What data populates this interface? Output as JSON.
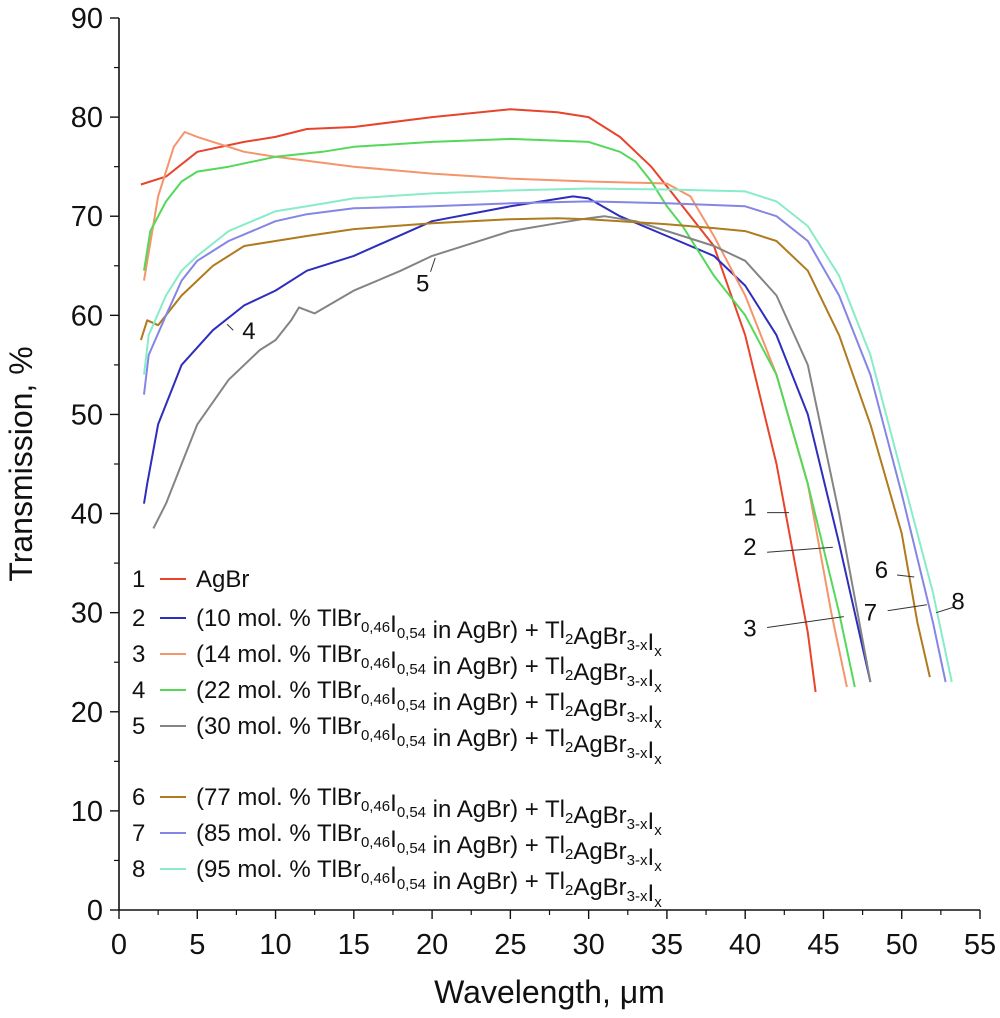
{
  "chart_data": {
    "type": "line",
    "xlabel": "Wavelength, μm",
    "ylabel": "Transmission, %",
    "xlim": [
      0,
      55
    ],
    "ylim": [
      0,
      90
    ],
    "xticks": [
      0,
      5,
      10,
      15,
      20,
      25,
      30,
      35,
      40,
      45,
      50,
      55
    ],
    "yticks": [
      0,
      10,
      20,
      30,
      40,
      50,
      60,
      70,
      80,
      90
    ],
    "grid": false,
    "legend_position": "bottom-left",
    "series": [
      {
        "num": "1",
        "color": "#e8432b",
        "legend_parts": [
          {
            "t": "AgBr",
            "sub": false
          }
        ],
        "x": [
          1.4,
          3,
          5,
          8,
          10,
          12,
          15,
          20,
          25,
          28,
          30,
          32,
          34,
          36,
          38,
          40,
          42,
          44,
          44.5
        ],
        "y": [
          73.2,
          74,
          76.5,
          77.5,
          78,
          78.8,
          79,
          80,
          80.8,
          80.5,
          80,
          78,
          75,
          71,
          67,
          58,
          45,
          28,
          22
        ]
      },
      {
        "num": "2",
        "color": "#2e2dbd",
        "legend_parts": [
          {
            "t": "(10 mol. % TlBr",
            "sub": false
          },
          {
            "t": "0,46",
            "sub": true
          },
          {
            "t": "I",
            "sub": false
          },
          {
            "t": "0,54",
            "sub": true
          },
          {
            "t": " in AgBr) + Tl",
            "sub": false
          },
          {
            "t": "2",
            "sub": true
          },
          {
            "t": "AgBr",
            "sub": false
          },
          {
            "t": "3-x",
            "sub": true
          },
          {
            "t": "I",
            "sub": false
          },
          {
            "t": "x",
            "sub": true
          }
        ],
        "x": [
          1.6,
          1.8,
          2.5,
          4,
          6,
          8,
          10,
          12,
          15,
          20,
          25,
          29,
          30,
          32,
          35,
          38,
          40,
          42,
          44,
          46,
          48
        ],
        "y": [
          41,
          43,
          49,
          55,
          58.5,
          61,
          62.5,
          64.5,
          66,
          69.5,
          71,
          72,
          71.8,
          70,
          68,
          66,
          63,
          58,
          50,
          37,
          23
        ]
      },
      {
        "num": "3",
        "color": "#f4956b",
        "legend_parts": [
          {
            "t": "(14 mol. % TlBr",
            "sub": false
          },
          {
            "t": "0,46",
            "sub": true
          },
          {
            "t": "I",
            "sub": false
          },
          {
            "t": "0,54",
            "sub": true
          },
          {
            "t": " in AgBr) + Tl",
            "sub": false
          },
          {
            "t": "2",
            "sub": true
          },
          {
            "t": "AgBr",
            "sub": false
          },
          {
            "t": "3-x",
            "sub": true
          },
          {
            "t": "I",
            "sub": false
          },
          {
            "t": "x",
            "sub": true
          }
        ],
        "x": [
          1.6,
          2.5,
          3.5,
          4.2,
          5,
          6,
          8,
          10,
          15,
          20,
          25,
          30,
          35,
          36.5,
          38,
          40,
          42,
          44,
          45.5,
          46.5
        ],
        "y": [
          63.5,
          72,
          77,
          78.5,
          78,
          77.5,
          76.5,
          76,
          75,
          74.3,
          73.8,
          73.5,
          73.3,
          72,
          68,
          62,
          54,
          43,
          30,
          22.5
        ]
      },
      {
        "num": "4",
        "color": "#55d85a",
        "legend_parts": [
          {
            "t": "(22 mol. % TlBr",
            "sub": false
          },
          {
            "t": "0,46",
            "sub": true
          },
          {
            "t": "I",
            "sub": false
          },
          {
            "t": "0,54",
            "sub": true
          },
          {
            "t": " in AgBr) + Tl",
            "sub": false
          },
          {
            "t": "2",
            "sub": true
          },
          {
            "t": "AgBr",
            "sub": false
          },
          {
            "t": "3-x",
            "sub": true
          },
          {
            "t": "I",
            "sub": false
          },
          {
            "t": "x",
            "sub": true
          }
        ],
        "x": [
          1.6,
          2,
          3,
          4,
          5,
          7,
          10,
          13,
          15,
          20,
          25,
          30,
          32,
          33,
          34,
          35,
          36,
          38,
          40,
          42,
          44,
          46,
          47
        ],
        "y": [
          64.5,
          68.5,
          71.5,
          73.5,
          74.5,
          75,
          76,
          76.5,
          77,
          77.5,
          77.8,
          77.5,
          76.5,
          75.5,
          73.5,
          71,
          69,
          64,
          60,
          54,
          43,
          30,
          22.5
        ]
      },
      {
        "num": "5",
        "color": "#848484",
        "legend_parts": [
          {
            "t": "(30 mol. % TlBr",
            "sub": false
          },
          {
            "t": "0,46",
            "sub": true
          },
          {
            "t": "I",
            "sub": false
          },
          {
            "t": "0,54",
            "sub": true
          },
          {
            "t": " in AgBr) + Tl",
            "sub": false
          },
          {
            "t": "2",
            "sub": true
          },
          {
            "t": "AgBr",
            "sub": false
          },
          {
            "t": "3-x",
            "sub": true
          },
          {
            "t": "I",
            "sub": false
          },
          {
            "t": "x",
            "sub": true
          }
        ],
        "x": [
          2.2,
          3,
          4,
          5,
          7,
          9,
          10,
          11,
          11.5,
          12.5,
          15,
          18,
          20,
          25,
          28,
          30,
          31,
          33,
          36,
          38,
          40,
          42,
          44,
          46,
          48
        ],
        "y": [
          38.5,
          41,
          45,
          49,
          53.5,
          56.5,
          57.5,
          59.5,
          60.8,
          60.2,
          62.5,
          64.5,
          66,
          68.5,
          69.3,
          69.8,
          70,
          69.5,
          68,
          67,
          65.5,
          62,
          55,
          40,
          23
        ]
      },
      {
        "num": "6",
        "color": "#b07a1e",
        "legend_parts": [
          {
            "t": "(77 mol. % TlBr",
            "sub": false
          },
          {
            "t": "0,46",
            "sub": true
          },
          {
            "t": "I",
            "sub": false
          },
          {
            "t": "0,54",
            "sub": true
          },
          {
            "t": " in AgBr) + Tl",
            "sub": false
          },
          {
            "t": "2",
            "sub": true
          },
          {
            "t": "AgBr",
            "sub": false
          },
          {
            "t": "3-x",
            "sub": true
          },
          {
            "t": "I",
            "sub": false
          },
          {
            "t": "x",
            "sub": true
          }
        ],
        "x": [
          1.4,
          1.8,
          2.5,
          4,
          5,
          6,
          7,
          8,
          10,
          12,
          15,
          20,
          25,
          28,
          30,
          35,
          38,
          40,
          42,
          44,
          46,
          48,
          50,
          51,
          51.8
        ],
        "y": [
          57.5,
          59.5,
          59,
          62,
          63.5,
          65,
          66,
          67,
          67.5,
          68,
          68.7,
          69.3,
          69.7,
          69.8,
          69.7,
          69.2,
          68.8,
          68.5,
          67.5,
          64.5,
          58,
          49,
          38,
          29,
          23.5
        ]
      },
      {
        "num": "7",
        "color": "#8585e6",
        "legend_parts": [
          {
            "t": "(85 mol. % TlBr",
            "sub": false
          },
          {
            "t": "0,46",
            "sub": true
          },
          {
            "t": "I",
            "sub": false
          },
          {
            "t": "0,54",
            "sub": true
          },
          {
            "t": " in AgBr) + Tl",
            "sub": false
          },
          {
            "t": "2",
            "sub": true
          },
          {
            "t": "AgBr",
            "sub": false
          },
          {
            "t": "3-x",
            "sub": true
          },
          {
            "t": "I",
            "sub": false
          },
          {
            "t": "x",
            "sub": true
          }
        ],
        "x": [
          1.6,
          1.9,
          3,
          4,
          5,
          7,
          10,
          12,
          15,
          20,
          25,
          30,
          35,
          40,
          42,
          44,
          46,
          48,
          50,
          52,
          52.8
        ],
        "y": [
          52,
          56,
          60,
          63.5,
          65.5,
          67.5,
          69.5,
          70.2,
          70.8,
          71,
          71.3,
          71.5,
          71.3,
          71,
          70,
          67.5,
          62,
          54,
          42,
          29,
          23
        ]
      },
      {
        "num": "8",
        "color": "#88ecc8",
        "legend_parts": [
          {
            "t": "(95 mol. % TlBr",
            "sub": false
          },
          {
            "t": "0,46",
            "sub": true
          },
          {
            "t": "I",
            "sub": false
          },
          {
            "t": "0,54",
            "sub": true
          },
          {
            "t": " in AgBr) + Tl",
            "sub": false
          },
          {
            "t": "2",
            "sub": true
          },
          {
            "t": "AgBr",
            "sub": false
          },
          {
            "t": "3-x",
            "sub": true
          },
          {
            "t": "I",
            "sub": false
          },
          {
            "t": "x",
            "sub": true
          }
        ],
        "x": [
          1.6,
          1.9,
          3,
          4,
          5,
          7,
          10,
          12,
          15,
          20,
          25,
          30,
          35,
          40,
          42,
          44,
          46,
          48,
          50,
          52,
          53.2
        ],
        "y": [
          54,
          58,
          62,
          64.5,
          66,
          68.5,
          70.5,
          71,
          71.8,
          72.3,
          72.6,
          72.8,
          72.7,
          72.5,
          71.5,
          69,
          64,
          56,
          44,
          32,
          23
        ]
      }
    ],
    "annotations": [
      {
        "text": "1",
        "x": 40.3,
        "y": 39.8,
        "lx1": 41.4,
        "ly1": 40.1,
        "lx2": 42.8,
        "ly2": 40.1
      },
      {
        "text": "2",
        "x": 40.3,
        "y": 35.8,
        "lx1": 41.4,
        "ly1": 36.1,
        "lx2": 45.6,
        "ly2": 36.6
      },
      {
        "text": "3",
        "x": 40.3,
        "y": 27.6,
        "lx1": 41.4,
        "ly1": 28.5,
        "lx2": 46.3,
        "ly2": 29.6
      },
      {
        "text": "4",
        "x": 8.3,
        "y": 57.6,
        "lx1": 7.3,
        "ly1": 58.5,
        "lx2": 6.9,
        "ly2": 59.1
      },
      {
        "text": "5",
        "x": 19.4,
        "y": 62.4,
        "lx1": 19.9,
        "ly1": 64.4,
        "lx2": 20.2,
        "ly2": 65.8
      },
      {
        "text": "6",
        "x": 48.7,
        "y": 33.5,
        "lx1": 49.7,
        "ly1": 33.8,
        "lx2": 50.8,
        "ly2": 33.6
      },
      {
        "text": "7",
        "x": 48.0,
        "y": 29.2,
        "lx1": 49.1,
        "ly1": 30.2,
        "lx2": 51.6,
        "ly2": 30.8
      },
      {
        "text": "8",
        "x": 53.6,
        "y": 30.3,
        "lx1": 53.4,
        "ly1": 30.6,
        "lx2": 52.2,
        "ly2": 30.0
      }
    ]
  }
}
